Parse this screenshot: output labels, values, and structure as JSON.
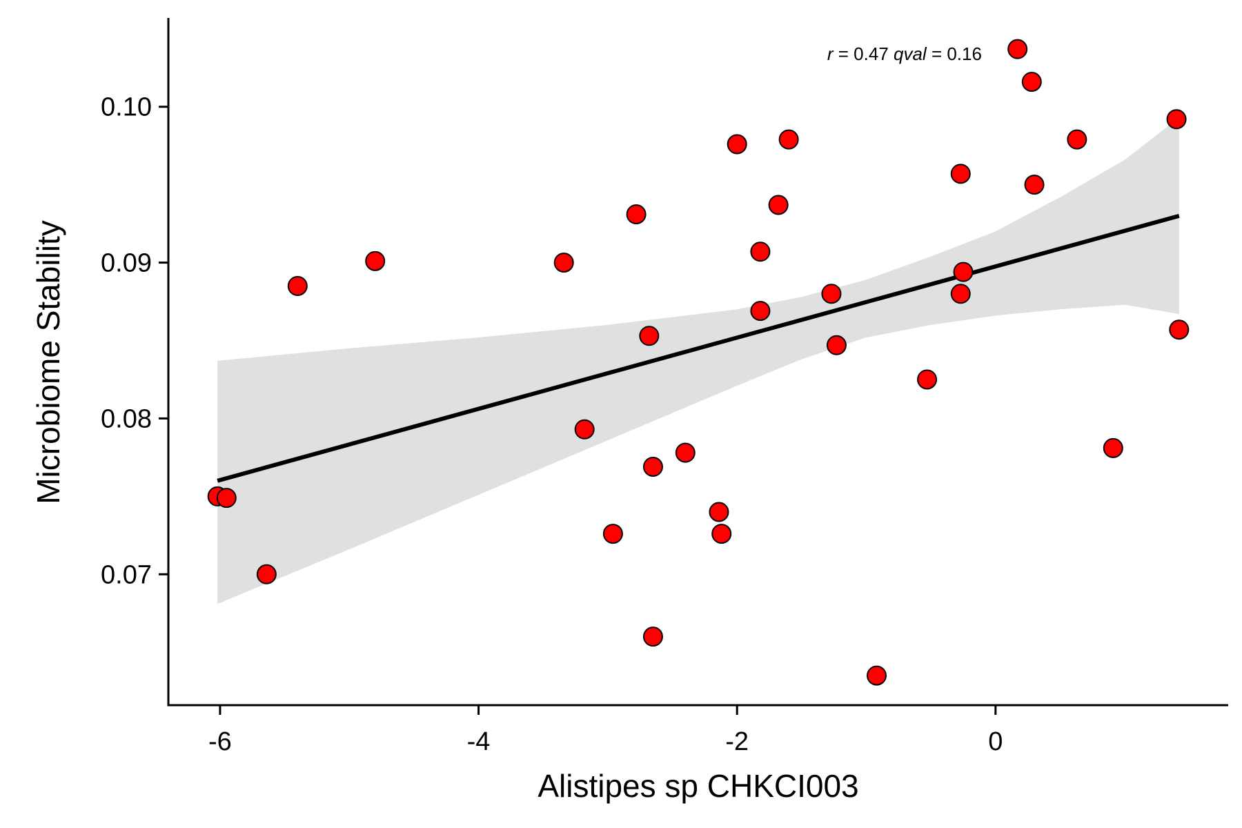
{
  "chart_data": {
    "type": "scatter",
    "xlabel": "Alistipes sp CHKCI003",
    "ylabel": "Microbiome Stability",
    "xlim": [
      -6.4,
      1.8
    ],
    "ylim": [
      0.0616,
      0.1057
    ],
    "xticks": [
      -6,
      -4,
      -2,
      0
    ],
    "xtick_labels": [
      "-6",
      "-4",
      "-2",
      "0"
    ],
    "yticks": [
      0.07,
      0.08,
      0.09,
      0.1
    ],
    "ytick_labels": [
      "0.07",
      "0.08",
      "0.09",
      "0.10"
    ],
    "grid": false,
    "legend": "none",
    "point_color": "#ff0000",
    "point_edge_color": "#000000",
    "fit_line_color": "#000000",
    "band_color": "#e0e0e0",
    "annotation": {
      "r_sym": "r",
      "r_eq": " = 0.47 ",
      "q_sym": "qval",
      "q_eq": " = 0.16",
      "x": 0.15,
      "y": 0.1034
    },
    "points": [
      {
        "x": -6.02,
        "y": 0.075
      },
      {
        "x": -5.95,
        "y": 0.0749
      },
      {
        "x": -5.64,
        "y": 0.07
      },
      {
        "x": -5.4,
        "y": 0.0885
      },
      {
        "x": -4.8,
        "y": 0.0901
      },
      {
        "x": -3.34,
        "y": 0.09
      },
      {
        "x": -3.18,
        "y": 0.0793
      },
      {
        "x": -2.96,
        "y": 0.0726
      },
      {
        "x": -2.78,
        "y": 0.0931
      },
      {
        "x": -2.68,
        "y": 0.0853
      },
      {
        "x": -2.65,
        "y": 0.0769
      },
      {
        "x": -2.65,
        "y": 0.066
      },
      {
        "x": -2.4,
        "y": 0.0778
      },
      {
        "x": -2.14,
        "y": 0.074
      },
      {
        "x": -2.12,
        "y": 0.0726
      },
      {
        "x": -2.0,
        "y": 0.0976
      },
      {
        "x": -1.82,
        "y": 0.0907
      },
      {
        "x": -1.82,
        "y": 0.0869
      },
      {
        "x": -1.68,
        "y": 0.0937
      },
      {
        "x": -1.6,
        "y": 0.0979
      },
      {
        "x": -1.27,
        "y": 0.088
      },
      {
        "x": -1.23,
        "y": 0.0847
      },
      {
        "x": -0.92,
        "y": 0.0635
      },
      {
        "x": -0.53,
        "y": 0.0825
      },
      {
        "x": -0.27,
        "y": 0.0957
      },
      {
        "x": -0.27,
        "y": 0.088
      },
      {
        "x": -0.25,
        "y": 0.0894
      },
      {
        "x": 0.17,
        "y": 0.1037
      },
      {
        "x": 0.28,
        "y": 0.1016
      },
      {
        "x": 0.3,
        "y": 0.095
      },
      {
        "x": 0.63,
        "y": 0.0979
      },
      {
        "x": 0.91,
        "y": 0.0781
      },
      {
        "x": 1.4,
        "y": 0.0992
      },
      {
        "x": 1.42,
        "y": 0.0857
      }
    ],
    "fit": {
      "x": [
        -6.02,
        1.42
      ],
      "y": [
        0.076,
        0.093
      ]
    },
    "band": {
      "x": [
        -6.02,
        -5.0,
        -4.0,
        -3.0,
        -2.0,
        -1.5,
        -1.0,
        -0.5,
        0.0,
        0.5,
        1.0,
        1.42
      ],
      "upper": [
        0.0837,
        0.0845,
        0.0852,
        0.086,
        0.087,
        0.0878,
        0.0889,
        0.0904,
        0.092,
        0.0942,
        0.0966,
        0.0993
      ],
      "lower": [
        0.0681,
        0.0716,
        0.0751,
        0.0786,
        0.0821,
        0.0838,
        0.0852,
        0.086,
        0.0866,
        0.087,
        0.0873,
        0.0867
      ]
    }
  }
}
